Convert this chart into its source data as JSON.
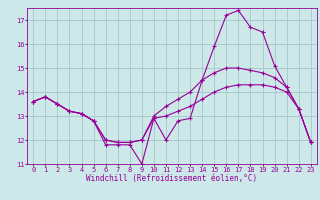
{
  "xlabel": "Windchill (Refroidissement éolien,°C)",
  "bg_color": "#cce8e8",
  "grid_color": "#aacccc",
  "line_color": "#990099",
  "series1_x": [
    0,
    1,
    2,
    3,
    4,
    5,
    6,
    7,
    8,
    9,
    10,
    11,
    12,
    13,
    14,
    15,
    16,
    17,
    18,
    19,
    20,
    21,
    22,
    23
  ],
  "series1_y": [
    13.6,
    13.8,
    13.5,
    13.2,
    13.1,
    12.8,
    11.8,
    11.8,
    11.8,
    11.0,
    12.9,
    12.0,
    12.8,
    12.9,
    14.5,
    15.9,
    17.2,
    17.4,
    16.7,
    16.5,
    15.1,
    14.2,
    13.3,
    11.9
  ],
  "series2_x": [
    0,
    1,
    2,
    3,
    4,
    5,
    6,
    7,
    8,
    9,
    10,
    11,
    12,
    13,
    14,
    15,
    16,
    17,
    18,
    19,
    20,
    21,
    22,
    23
  ],
  "series2_y": [
    13.6,
    13.8,
    13.5,
    13.2,
    13.1,
    12.8,
    12.0,
    11.9,
    11.9,
    12.0,
    13.0,
    13.4,
    13.7,
    14.0,
    14.5,
    14.8,
    15.0,
    15.0,
    14.9,
    14.8,
    14.6,
    14.2,
    13.3,
    11.9
  ],
  "series3_x": [
    0,
    1,
    2,
    3,
    4,
    5,
    6,
    7,
    8,
    9,
    10,
    11,
    12,
    13,
    14,
    15,
    16,
    17,
    18,
    19,
    20,
    21,
    22,
    23
  ],
  "series3_y": [
    13.6,
    13.8,
    13.5,
    13.2,
    13.1,
    12.8,
    12.0,
    11.9,
    11.9,
    12.0,
    12.9,
    13.0,
    13.2,
    13.4,
    13.7,
    14.0,
    14.2,
    14.3,
    14.3,
    14.3,
    14.2,
    14.0,
    13.3,
    11.9
  ],
  "ylim": [
    11,
    17.5
  ],
  "yticks": [
    11,
    12,
    13,
    14,
    15,
    16,
    17
  ],
  "xlim": [
    -0.5,
    23.5
  ],
  "xticks": [
    0,
    1,
    2,
    3,
    4,
    5,
    6,
    7,
    8,
    9,
    10,
    11,
    12,
    13,
    14,
    15,
    16,
    17,
    18,
    19,
    20,
    21,
    22,
    23
  ],
  "tick_fontsize": 5.0,
  "xlabel_fontsize": 5.5
}
